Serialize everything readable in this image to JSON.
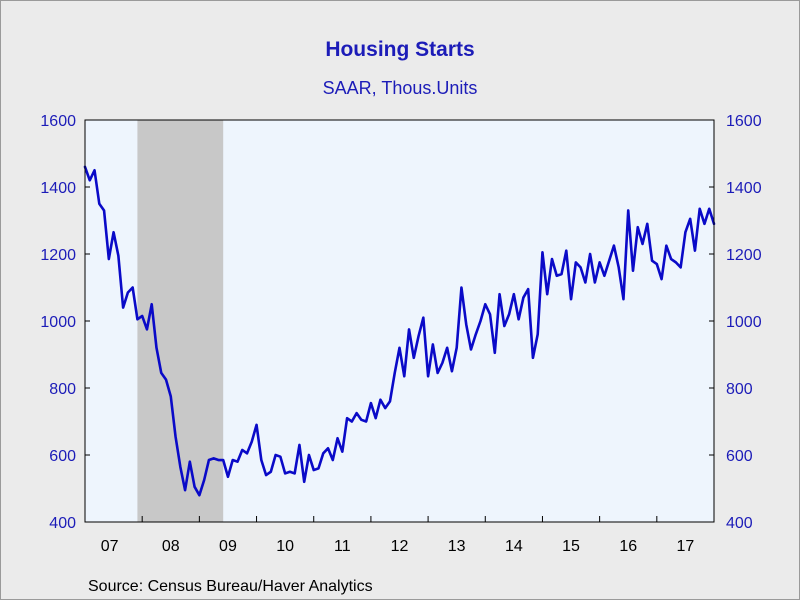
{
  "title": "Housing Starts",
  "subtitle": "SAAR, Thous.Units",
  "source": "Source:  Census Bureau/Haver Analytics",
  "colors": {
    "line": "#0a0ac8",
    "plot_bg": "#eef5fd",
    "recession": "#c8c8c8",
    "axis_text": "#1c1cb8"
  },
  "chart_data": {
    "type": "line",
    "ylim": [
      400,
      1600
    ],
    "y_ticks": [
      400,
      600,
      800,
      1000,
      1200,
      1400,
      1600
    ],
    "x_tick_labels": [
      "07",
      "08",
      "09",
      "10",
      "11",
      "12",
      "13",
      "14",
      "15",
      "16",
      "17"
    ],
    "recession_band": {
      "start": "Dec 2007",
      "end": "Jun 2009"
    },
    "x_start": "Jan 2007",
    "x_end": "Dec 2017",
    "series": [
      {
        "name": "",
        "values": [
          1460,
          1420,
          1450,
          1350,
          1330,
          1185,
          1265,
          1195,
          1040,
          1085,
          1100,
          1005,
          1015,
          975,
          1050,
          920,
          845,
          825,
          775,
          655,
          565,
          495,
          580,
          505,
          480,
          525,
          585,
          590,
          585,
          585,
          535,
          585,
          580,
          615,
          605,
          640,
          690,
          585,
          540,
          550,
          600,
          595,
          545,
          550,
          545,
          630,
          520,
          600,
          555,
          560,
          605,
          620,
          585,
          650,
          610,
          710,
          700,
          725,
          705,
          700,
          755,
          710,
          765,
          740,
          760,
          845,
          920,
          835,
          975,
          890,
          955,
          1010,
          835,
          930,
          845,
          875,
          920,
          850,
          920,
          1100,
          990,
          915,
          960,
          1000,
          1050,
          1020,
          905,
          1080,
          985,
          1020,
          1080,
          1005,
          1070,
          1095,
          890,
          960,
          1205,
          1080,
          1185,
          1135,
          1140,
          1210,
          1065,
          1175,
          1160,
          1115,
          1200,
          1115,
          1175,
          1135,
          1180,
          1225,
          1160,
          1065,
          1330,
          1150,
          1280,
          1230,
          1290,
          1180,
          1170,
          1125,
          1225,
          1185,
          1175,
          1160,
          1265,
          1305,
          1210,
          1335,
          1290,
          1335,
          1290
        ]
      }
    ]
  }
}
